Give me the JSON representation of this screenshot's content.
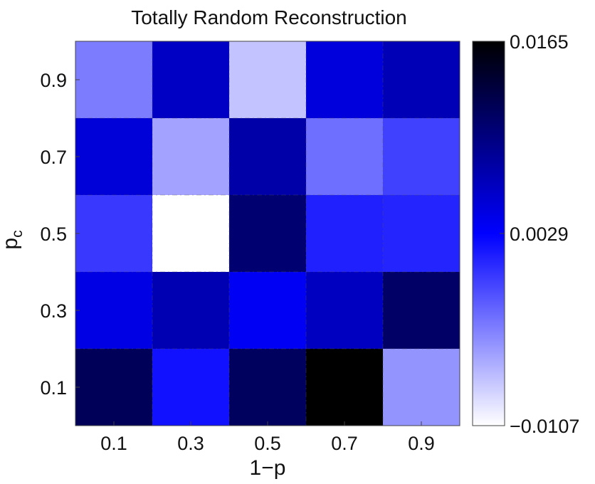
{
  "chart_data": {
    "type": "heatmap",
    "title": "Totally Random Reconstruction",
    "xlabel": "1−p",
    "ylabel": {
      "main": "p",
      "subscript": "c"
    },
    "x": [
      "0.1",
      "0.3",
      "0.5",
      "0.7",
      "0.9"
    ],
    "y": [
      "0.9",
      "0.7",
      "0.5",
      "0.3",
      "0.1"
    ],
    "values": [
      [
        -0.0037,
        0.006,
        -0.0075,
        0.0047,
        0.0068
      ],
      [
        0.005,
        -0.0058,
        0.0075,
        -0.003,
        -0.0005
      ],
      [
        -0.0001,
        -0.0107,
        0.0105,
        0.0012,
        0.001
      ],
      [
        0.0043,
        0.007,
        0.0035,
        0.0062,
        0.011
      ],
      [
        0.0118,
        0.002,
        0.0115,
        0.0165,
        -0.005
      ]
    ],
    "colorbar": {
      "min": -0.0107,
      "mid": 0.0029,
      "max": 0.0165,
      "tick_labels": [
        "0.0165",
        "0.0029",
        "−0.0107"
      ],
      "colors": {
        "low": "#ffffff",
        "mid": "#0000ff",
        "high": "#000000"
      }
    },
    "grid": true,
    "grid_style": "dash-dot"
  }
}
